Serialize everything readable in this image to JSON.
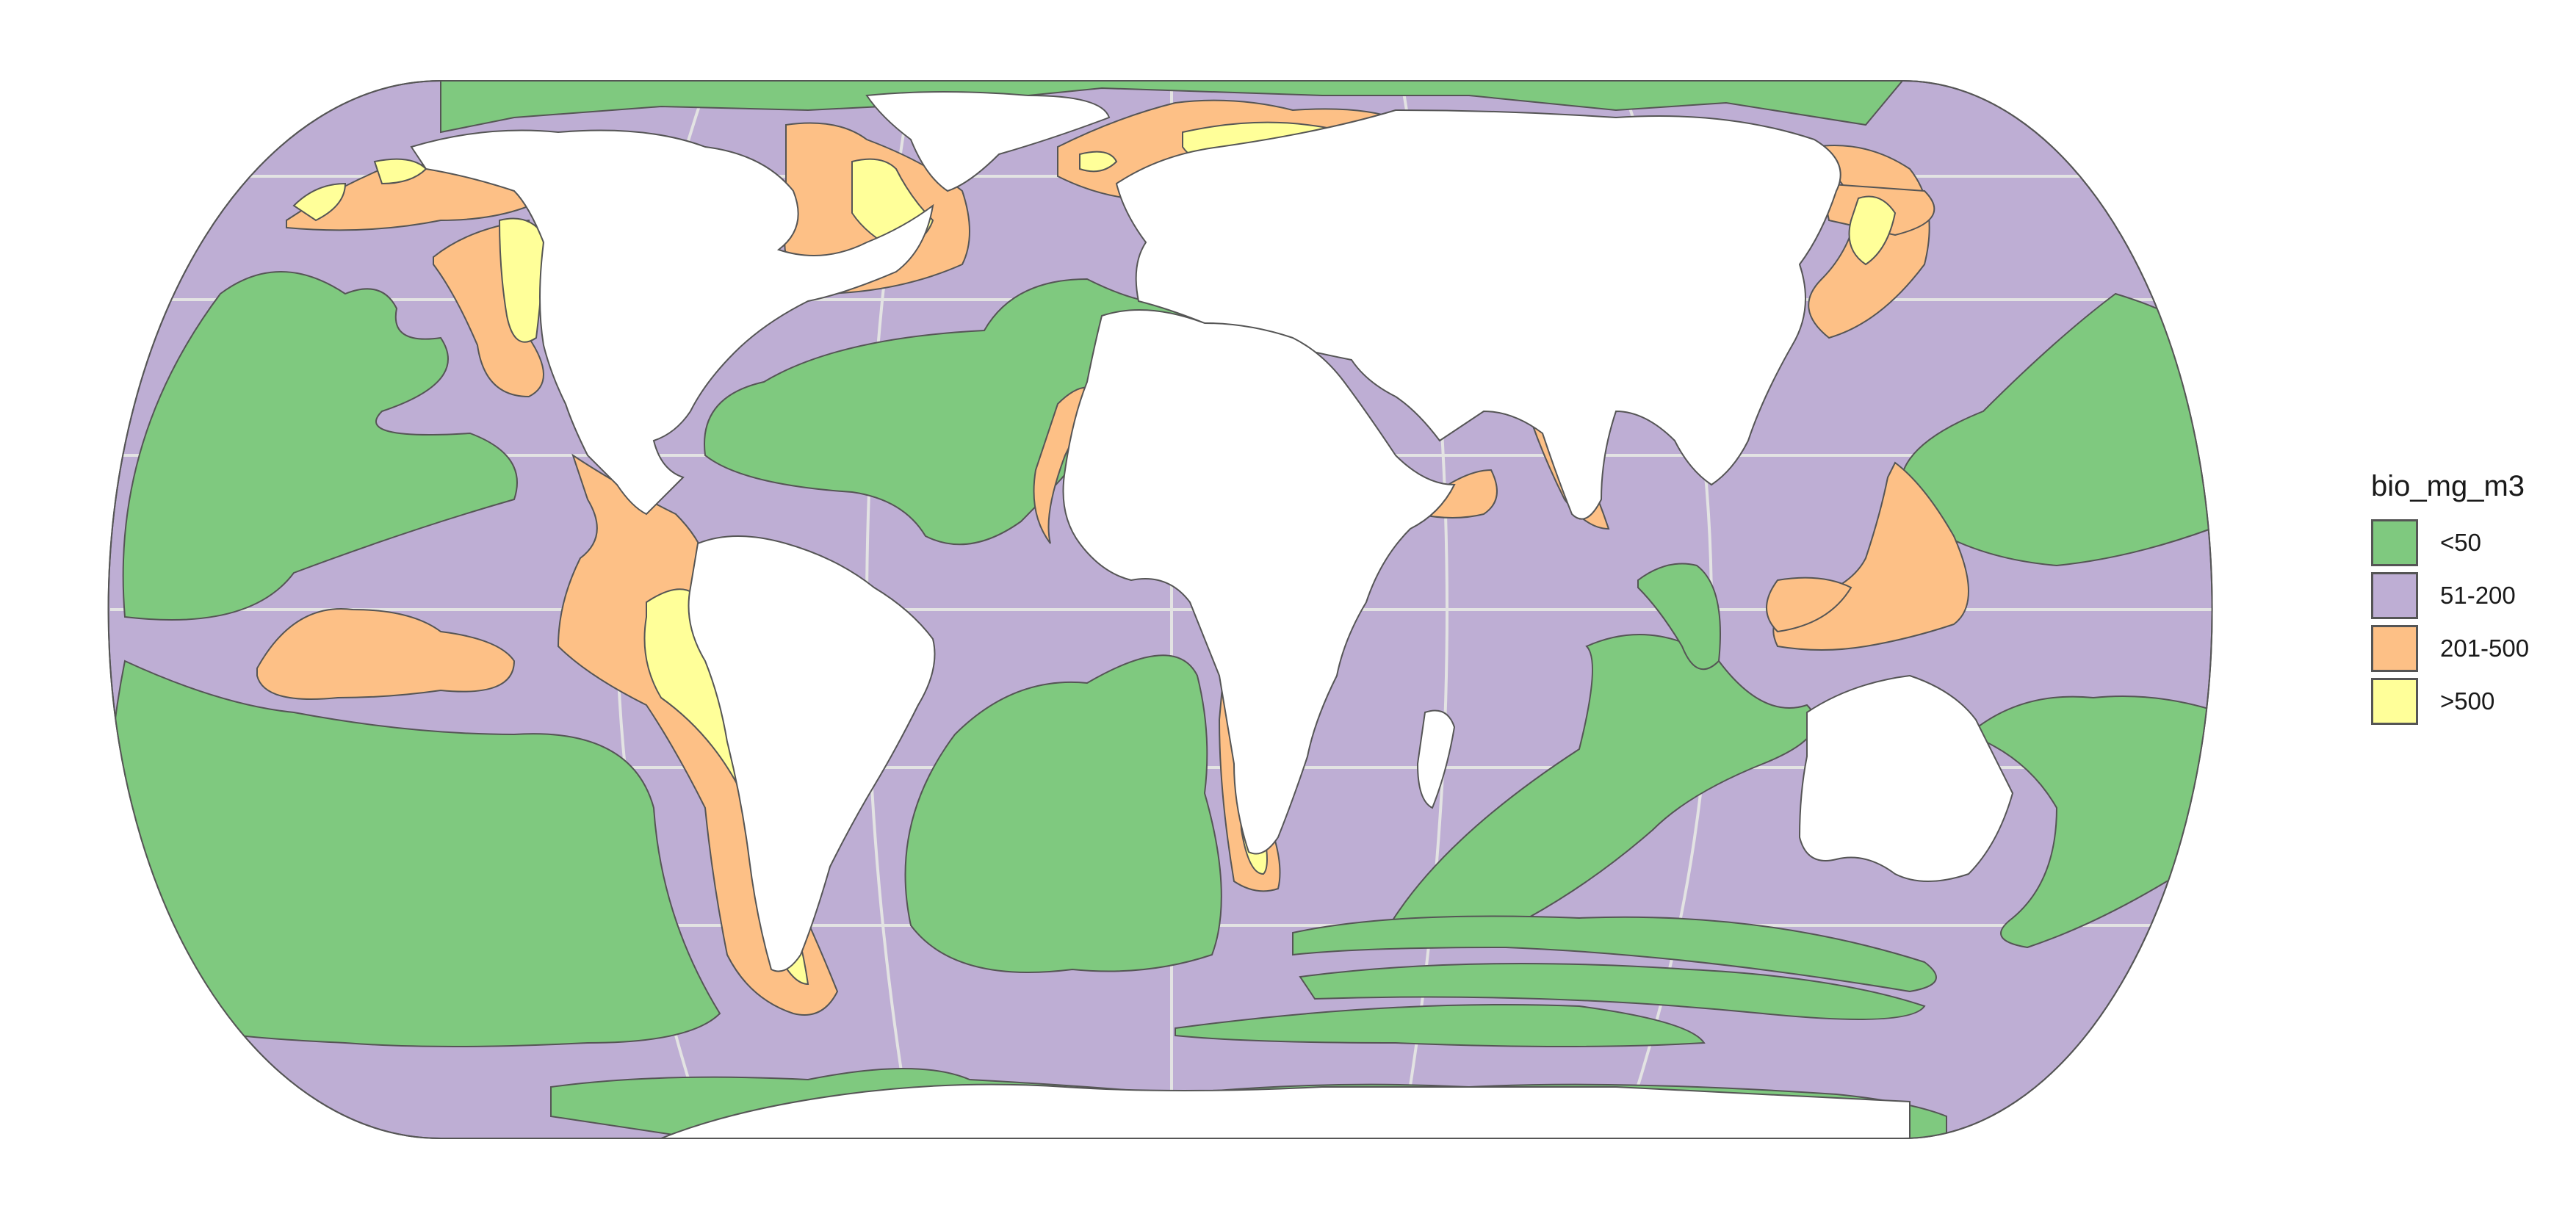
{
  "legend": {
    "title": "bio_mg_m3",
    "items": [
      {
        "label": "<50",
        "color": "#7fc97f"
      },
      {
        "label": "51-200",
        "color": "#beaed4"
      },
      {
        "label": "201-500",
        "color": "#fdc086"
      },
      {
        "label": ">500",
        "color": "#ffff99"
      }
    ]
  },
  "colors": {
    "land": "#ffffff",
    "border": "#555555",
    "graticule": "#e3e3e3",
    "background": "#ffffff"
  }
}
